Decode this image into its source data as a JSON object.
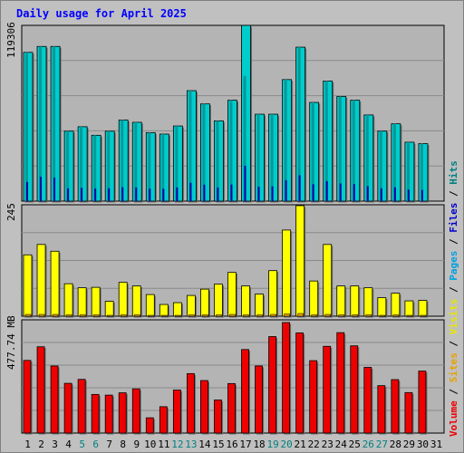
{
  "page": {
    "title": "Daily usage for April 2025"
  },
  "colors": {
    "background": "#c0c0c0",
    "plot_bg": "#b4b4b4",
    "grid": "#8a8a8a",
    "hits": "#00cccc",
    "files": "#009999",
    "pages": "#0000aa",
    "visits": "#ffff00",
    "sites": "#e8a000",
    "volume": "#ee0000",
    "weekend_label": "#008080",
    "weekday_label": "#000000"
  },
  "chart_data": [
    {
      "type": "bar",
      "name": "hits-files-pages",
      "ymax_label": "119306",
      "ylim": [
        0,
        119306
      ],
      "grid": true,
      "categories": [
        "1",
        "2",
        "3",
        "4",
        "5",
        "6",
        "7",
        "8",
        "9",
        "10",
        "11",
        "12",
        "13",
        "14",
        "15",
        "16",
        "17",
        "18",
        "19",
        "20",
        "21",
        "22",
        "23",
        "24",
        "25",
        "26",
        "27",
        "28",
        "29",
        "30",
        "31"
      ],
      "series": [
        {
          "name": "Hits",
          "values": [
            101000,
            105000,
            105000,
            47500,
            50500,
            44700,
            47500,
            55000,
            53500,
            46500,
            45500,
            51000,
            75000,
            66000,
            54500,
            68500,
            119306,
            59000,
            59000,
            82500,
            104500,
            67000,
            81500,
            71000,
            68500,
            58500,
            47500,
            52500,
            40000,
            39000,
            null
          ]
        },
        {
          "name": "Files",
          "values": [
            101000,
            105000,
            105000,
            47500,
            50500,
            44700,
            47500,
            55000,
            53500,
            46500,
            45500,
            51000,
            75000,
            66000,
            54500,
            68500,
            85000,
            59000,
            59000,
            82500,
            104500,
            67000,
            81500,
            71000,
            68500,
            58500,
            47500,
            52500,
            40000,
            39000,
            null
          ]
        },
        {
          "name": "Pages",
          "values": [
            13000,
            16500,
            16000,
            8700,
            9000,
            8500,
            8700,
            9400,
            9300,
            8500,
            8400,
            9300,
            12500,
            11200,
            9300,
            11300,
            24000,
            9800,
            10000,
            14200,
            17600,
            11500,
            13600,
            12000,
            11600,
            10200,
            8700,
            9400,
            7800,
            7600,
            null
          ]
        }
      ]
    },
    {
      "type": "bar",
      "name": "visits-sites",
      "ymax_label": "245",
      "ylim": [
        0,
        245
      ],
      "grid": true,
      "categories": [
        "1",
        "2",
        "3",
        "4",
        "5",
        "6",
        "7",
        "8",
        "9",
        "10",
        "11",
        "12",
        "13",
        "14",
        "15",
        "16",
        "17",
        "18",
        "19",
        "20",
        "21",
        "22",
        "23",
        "24",
        "25",
        "26",
        "27",
        "28",
        "29",
        "30",
        "31"
      ],
      "series": [
        {
          "name": "Visits",
          "values": [
            136,
            159,
            144,
            72,
            63,
            64,
            33,
            75,
            67,
            48,
            26,
            30,
            46,
            60,
            71,
            97,
            67,
            49,
            101,
            191,
            245,
            78,
            159,
            67,
            67,
            63,
            41,
            51,
            34,
            35,
            null
          ]
        },
        {
          "name": "Sites",
          "values": [
            4,
            4,
            4,
            3,
            3,
            3,
            2,
            3,
            3,
            2,
            2,
            2,
            3,
            3,
            3,
            4,
            3,
            3,
            4,
            5,
            6,
            3,
            4,
            3,
            3,
            3,
            2,
            3,
            2,
            2,
            null
          ]
        }
      ]
    },
    {
      "type": "bar",
      "name": "volume",
      "ymax_label": "477.74 MB",
      "ylim": [
        0,
        477.74
      ],
      "grid": true,
      "categories": [
        "1",
        "2",
        "3",
        "4",
        "5",
        "6",
        "7",
        "8",
        "9",
        "10",
        "11",
        "12",
        "13",
        "14",
        "15",
        "16",
        "17",
        "18",
        "19",
        "20",
        "21",
        "22",
        "23",
        "24",
        "25",
        "26",
        "27",
        "28",
        "29",
        "30",
        "31"
      ],
      "series": [
        {
          "name": "Volume",
          "values": [
            314,
            373,
            290,
            215,
            232,
            167,
            164,
            174,
            191,
            66,
            114,
            186,
            257,
            227,
            143,
            214,
            361,
            290,
            417,
            477.74,
            433,
            313,
            375,
            434,
            377,
            284,
            205,
            231,
            175,
            268,
            null
          ]
        }
      ]
    }
  ],
  "x_labels": [
    {
      "label": "1",
      "weekend": false
    },
    {
      "label": "2",
      "weekend": false
    },
    {
      "label": "3",
      "weekend": false
    },
    {
      "label": "4",
      "weekend": false
    },
    {
      "label": "5",
      "weekend": true
    },
    {
      "label": "6",
      "weekend": true
    },
    {
      "label": "7",
      "weekend": false
    },
    {
      "label": "8",
      "weekend": false
    },
    {
      "label": "9",
      "weekend": false
    },
    {
      "label": "10",
      "weekend": false
    },
    {
      "label": "11",
      "weekend": false
    },
    {
      "label": "12",
      "weekend": true
    },
    {
      "label": "13",
      "weekend": true
    },
    {
      "label": "14",
      "weekend": false
    },
    {
      "label": "15",
      "weekend": false
    },
    {
      "label": "16",
      "weekend": false
    },
    {
      "label": "17",
      "weekend": false
    },
    {
      "label": "18",
      "weekend": false
    },
    {
      "label": "19",
      "weekend": true
    },
    {
      "label": "20",
      "weekend": true
    },
    {
      "label": "21",
      "weekend": false
    },
    {
      "label": "22",
      "weekend": false
    },
    {
      "label": "23",
      "weekend": false
    },
    {
      "label": "24",
      "weekend": false
    },
    {
      "label": "25",
      "weekend": false
    },
    {
      "label": "26",
      "weekend": true
    },
    {
      "label": "27",
      "weekend": true
    },
    {
      "label": "28",
      "weekend": false
    },
    {
      "label": "29",
      "weekend": false
    },
    {
      "label": "30",
      "weekend": false
    },
    {
      "label": "31",
      "weekend": false
    }
  ],
  "legend": {
    "volume": "Volume",
    "sites": "Sites",
    "visits": "Visits",
    "pages": "Pages",
    "files": "Files",
    "hits": "Hits",
    "separator": " / "
  }
}
